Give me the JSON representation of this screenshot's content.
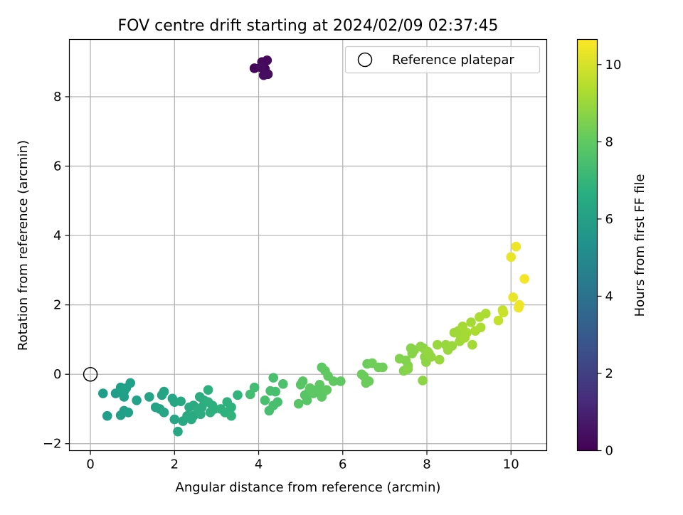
{
  "chart_data": {
    "type": "scatter",
    "title": "FOV centre drift starting at 2024/02/09 02:37:45",
    "xlabel": "Angular distance from reference (arcmin)",
    "ylabel": "Rotation from reference (arcmin)",
    "xlim": [
      -0.5,
      10.85
    ],
    "ylim": [
      -2.2,
      9.65
    ],
    "xticks": [
      0,
      2,
      4,
      6,
      8,
      10
    ],
    "yticks": [
      -2,
      0,
      2,
      4,
      6,
      8
    ],
    "grid": true,
    "legend": {
      "position": "top-right",
      "entries": [
        "Reference platepar"
      ]
    },
    "reference": {
      "x": 0,
      "y": 0
    },
    "colorbar": {
      "label": "Hours from first FF file",
      "colormap": "viridis",
      "range": [
        0,
        10.65
      ],
      "ticks": [
        0,
        2,
        4,
        6,
        8,
        10
      ]
    },
    "series": [
      {
        "points": [
          [
            4.15,
            8.8,
            0.15
          ],
          [
            4.08,
            9.0,
            0.2
          ],
          [
            4.2,
            9.05,
            0.25
          ],
          [
            3.9,
            8.82,
            0.1
          ],
          [
            4.05,
            8.85,
            0.3
          ],
          [
            4.22,
            8.65,
            0.35
          ],
          [
            4.12,
            8.62,
            0.4
          ],
          [
            0.3,
            -0.55,
            5.9
          ],
          [
            0.4,
            -1.2,
            5.9
          ],
          [
            0.6,
            -0.55,
            5.9
          ],
          [
            0.72,
            -1.18,
            6.0
          ],
          [
            0.72,
            -0.38,
            6.0
          ],
          [
            0.8,
            -0.65,
            6.0
          ],
          [
            0.8,
            -0.5,
            6.0
          ],
          [
            0.8,
            -1.05,
            6.0
          ],
          [
            0.85,
            -0.4,
            6.05
          ],
          [
            0.9,
            -1.1,
            6.05
          ],
          [
            0.95,
            -0.25,
            6.05
          ],
          [
            1.1,
            -0.75,
            6.1
          ],
          [
            1.4,
            -0.65,
            6.2
          ],
          [
            1.55,
            -0.95,
            6.2
          ],
          [
            1.65,
            -1.0,
            6.2
          ],
          [
            1.7,
            -0.6,
            6.2
          ],
          [
            1.75,
            -0.5,
            6.2
          ],
          [
            1.75,
            -1.1,
            6.3
          ],
          [
            1.95,
            -0.7,
            6.3
          ],
          [
            2.0,
            -0.8,
            6.3
          ],
          [
            2.0,
            -1.3,
            6.3
          ],
          [
            2.08,
            -1.65,
            6.4
          ],
          [
            2.15,
            -0.78,
            6.4
          ],
          [
            2.2,
            -1.35,
            6.4
          ],
          [
            2.3,
            -1.2,
            6.5
          ],
          [
            2.35,
            -0.95,
            6.5
          ],
          [
            2.4,
            -1.3,
            6.5
          ],
          [
            2.45,
            -0.9,
            6.5
          ],
          [
            2.45,
            -1.2,
            6.5
          ],
          [
            2.55,
            -1.0,
            6.6
          ],
          [
            2.6,
            -0.65,
            6.6
          ],
          [
            2.62,
            -1.15,
            6.6
          ],
          [
            2.65,
            -0.95,
            6.6
          ],
          [
            2.7,
            -0.75,
            6.6
          ],
          [
            2.8,
            -0.45,
            6.7
          ],
          [
            2.8,
            -0.8,
            6.7
          ],
          [
            2.85,
            -1.1,
            6.7
          ],
          [
            2.9,
            -0.9,
            6.7
          ],
          [
            2.95,
            -1.0,
            6.7
          ],
          [
            3.1,
            -1.0,
            6.8
          ],
          [
            3.2,
            -1.1,
            6.8
          ],
          [
            3.25,
            -0.8,
            6.8
          ],
          [
            3.3,
            -1.05,
            6.8
          ],
          [
            3.35,
            -0.95,
            6.8
          ],
          [
            3.35,
            -1.2,
            6.9
          ],
          [
            3.5,
            -0.6,
            6.9
          ],
          [
            3.8,
            -0.58,
            7.4
          ],
          [
            3.9,
            -0.38,
            7.4
          ],
          [
            4.15,
            -0.75,
            7.5
          ],
          [
            4.25,
            -1.05,
            7.5
          ],
          [
            4.28,
            -0.48,
            7.5
          ],
          [
            4.35,
            -0.9,
            7.5
          ],
          [
            4.35,
            -0.1,
            7.5
          ],
          [
            4.4,
            -0.5,
            7.5
          ],
          [
            4.45,
            -0.8,
            7.5
          ],
          [
            4.58,
            -0.28,
            7.6
          ],
          [
            4.95,
            -0.85,
            7.8
          ],
          [
            5.0,
            -0.3,
            7.8
          ],
          [
            5.05,
            -0.2,
            7.8
          ],
          [
            5.1,
            -0.6,
            7.8
          ],
          [
            5.15,
            -0.75,
            7.8
          ],
          [
            5.2,
            -0.5,
            7.8
          ],
          [
            5.22,
            -0.4,
            7.9
          ],
          [
            5.3,
            -0.55,
            7.9
          ],
          [
            5.38,
            -0.45,
            7.9
          ],
          [
            5.45,
            -0.3,
            7.9
          ],
          [
            5.5,
            0.2,
            7.9
          ],
          [
            5.5,
            -0.65,
            7.9
          ],
          [
            5.55,
            -0.5,
            7.9
          ],
          [
            5.58,
            0.1,
            8.0
          ],
          [
            5.62,
            -0.45,
            8.0
          ],
          [
            5.65,
            -0.05,
            8.0
          ],
          [
            5.78,
            -0.2,
            8.0
          ],
          [
            5.95,
            -0.2,
            8.0
          ],
          [
            6.45,
            0.0,
            8.2
          ],
          [
            6.5,
            -0.05,
            8.2
          ],
          [
            6.55,
            -0.25,
            8.2
          ],
          [
            6.58,
            0.3,
            8.2
          ],
          [
            6.62,
            -0.2,
            8.2
          ],
          [
            6.7,
            0.32,
            8.3
          ],
          [
            6.85,
            0.2,
            8.3
          ],
          [
            6.95,
            0.2,
            8.3
          ],
          [
            7.35,
            0.45,
            8.6
          ],
          [
            7.45,
            0.1,
            8.6
          ],
          [
            7.5,
            0.4,
            8.6
          ],
          [
            7.55,
            0.25,
            8.6
          ],
          [
            7.55,
            0.15,
            8.7
          ],
          [
            7.62,
            0.75,
            8.7
          ],
          [
            7.65,
            0.6,
            8.7
          ],
          [
            7.7,
            0.7,
            8.7
          ],
          [
            7.85,
            0.8,
            8.8
          ],
          [
            7.9,
            -0.18,
            8.8
          ],
          [
            7.92,
            0.75,
            8.8
          ],
          [
            7.95,
            0.5,
            8.8
          ],
          [
            7.98,
            0.35,
            8.8
          ],
          [
            8.02,
            0.65,
            8.9
          ],
          [
            8.05,
            0.6,
            8.9
          ],
          [
            8.1,
            0.5,
            8.9
          ],
          [
            8.25,
            0.85,
            9.0
          ],
          [
            8.3,
            0.42,
            9.0
          ],
          [
            8.45,
            0.85,
            9.0
          ],
          [
            8.5,
            0.7,
            9.0
          ],
          [
            8.6,
            0.82,
            9.0
          ],
          [
            8.65,
            1.2,
            9.1
          ],
          [
            8.75,
            1.25,
            9.1
          ],
          [
            8.78,
            0.95,
            9.1
          ],
          [
            8.8,
            1.1,
            9.1
          ],
          [
            8.85,
            1.38,
            9.2
          ],
          [
            8.9,
            1.05,
            9.2
          ],
          [
            8.95,
            1.2,
            9.2
          ],
          [
            9.05,
            1.5,
            9.2
          ],
          [
            9.08,
            0.85,
            9.2
          ],
          [
            9.15,
            1.25,
            9.3
          ],
          [
            9.25,
            1.65,
            9.3
          ],
          [
            9.28,
            1.35,
            9.3
          ],
          [
            9.4,
            1.75,
            9.3
          ],
          [
            9.7,
            1.55,
            9.7
          ],
          [
            9.8,
            1.85,
            9.7
          ],
          [
            9.82,
            1.78,
            9.8
          ],
          [
            10.0,
            3.38,
            10.3
          ],
          [
            10.05,
            2.22,
            10.3
          ],
          [
            10.12,
            3.68,
            10.4
          ],
          [
            10.18,
            1.92,
            10.4
          ],
          [
            10.2,
            2.0,
            10.4
          ],
          [
            10.32,
            2.75,
            10.5
          ]
        ]
      }
    ]
  }
}
